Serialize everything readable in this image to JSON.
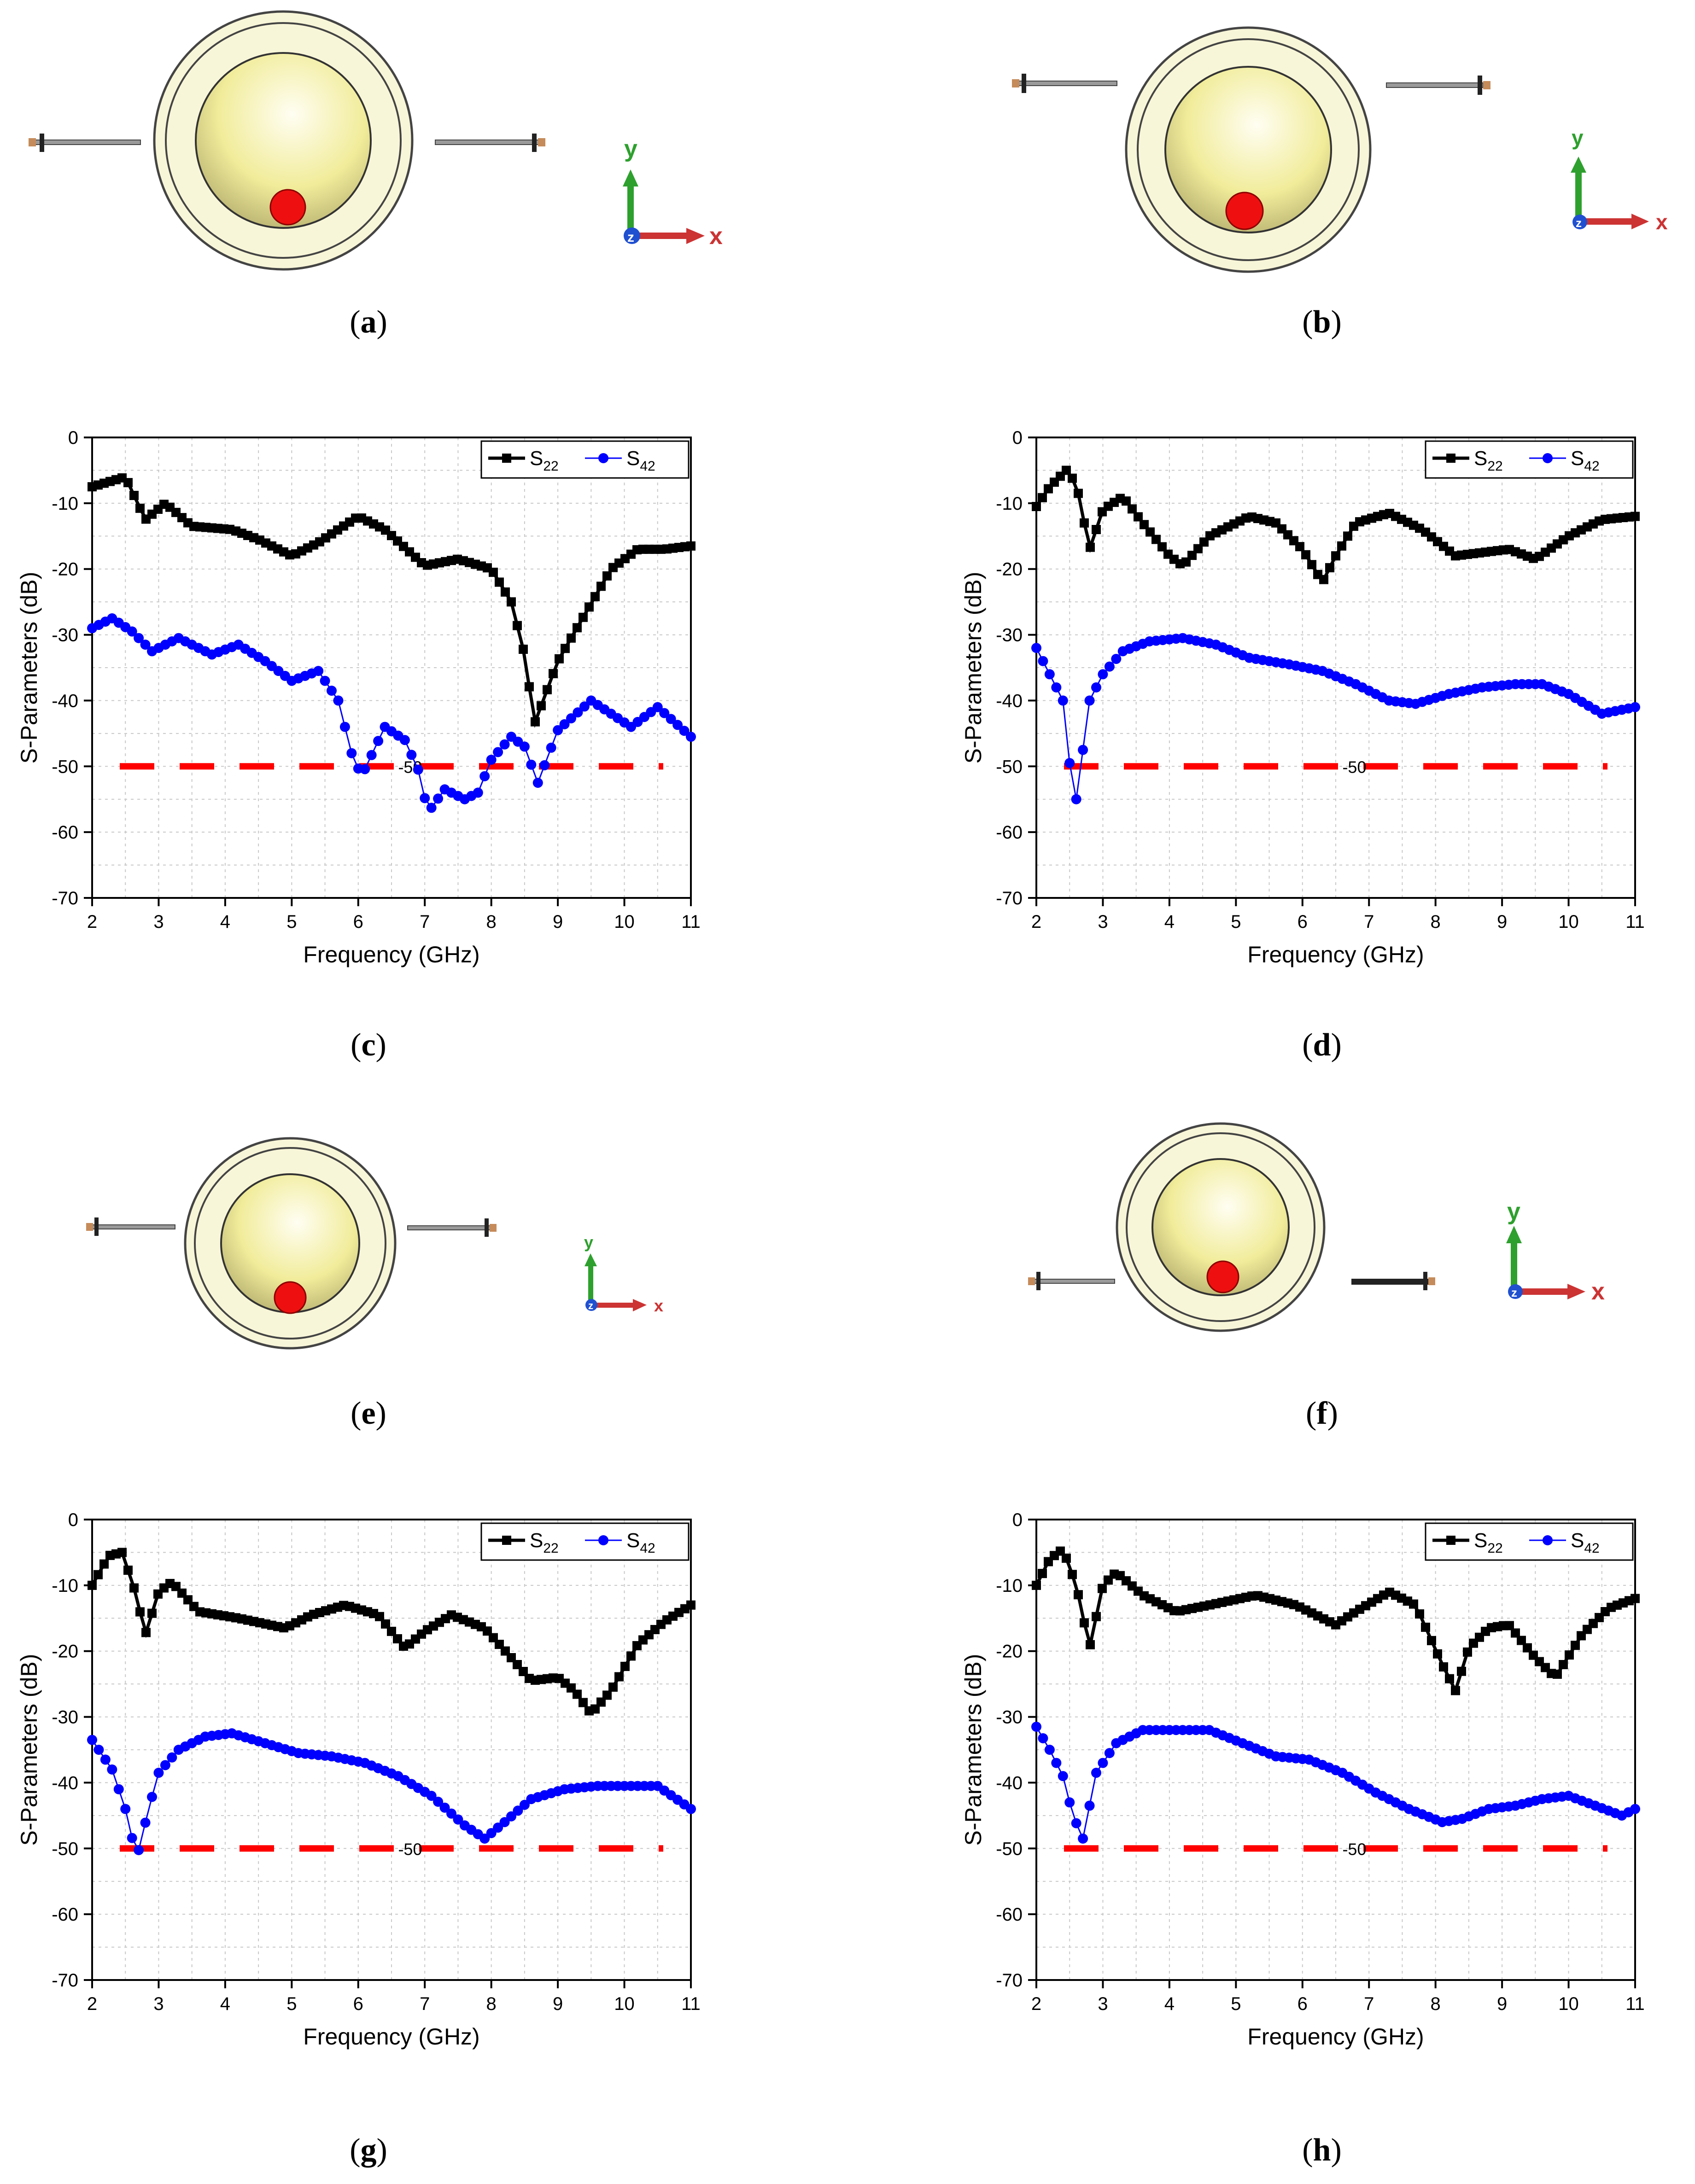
{
  "captions": {
    "a": {
      "open": "(",
      "letter": "a",
      "close": ")"
    },
    "b": {
      "open": "(",
      "letter": "b",
      "close": ")"
    },
    "c": {
      "open": "(",
      "letter": "c",
      "close": ")"
    },
    "d": {
      "open": "(",
      "letter": "d",
      "close": ")"
    },
    "e": {
      "open": "(",
      "letter": "e",
      "close": ")"
    },
    "f": {
      "open": "(",
      "letter": "f",
      "close": ")"
    },
    "g": {
      "open": "(",
      "letter": "g",
      "close": ")"
    },
    "h": {
      "open": "(",
      "letter": "h",
      "close": ")"
    }
  },
  "axis_labels": {
    "x": "x",
    "y": "y",
    "z": "z"
  },
  "colors": {
    "s22": "#000000",
    "s42": "#0000ff",
    "threshold": "#ff0000",
    "sphere_outer": "#f8f6d8",
    "sphere_inner": "#f2ee9a",
    "ball": "#ee1010",
    "axis_x": "#cc3333",
    "axis_y": "#2ea02e",
    "axis_z": "#2050d0"
  },
  "chart_data": [
    {
      "id": "c",
      "type": "line",
      "xlabel": "Frequency (GHz)",
      "ylabel": "S-Parameters (dB)",
      "xlim": [
        2,
        11
      ],
      "ylim": [
        -70,
        0
      ],
      "xticks": [
        2,
        3,
        4,
        5,
        6,
        7,
        8,
        9,
        10,
        11
      ],
      "yticks": [
        0,
        -10,
        -20,
        -30,
        -40,
        -50,
        -60,
        -70
      ],
      "threshold": -50,
      "threshold_label": "-50",
      "series": [
        {
          "name": "S",
          "sub": "22",
          "marker": "square",
          "x": [
            2,
            2.5,
            2.8,
            3.1,
            3.5,
            4.1,
            4.5,
            5,
            5.4,
            6,
            6.4,
            7,
            7.5,
            8,
            8.3,
            8.5,
            8.65,
            9,
            9.4,
            9.8,
            10.2,
            10.6,
            11
          ],
          "y": [
            -7.5,
            -6,
            -12.5,
            -10,
            -13.5,
            -14,
            -15.5,
            -18,
            -16,
            -12,
            -14,
            -19.5,
            -18.5,
            -20,
            -25,
            -33,
            -43.5,
            -34,
            -27,
            -20,
            -17,
            -17,
            -16.5
          ]
        },
        {
          "name": "S",
          "sub": "42",
          "marker": "circle",
          "x": [
            2,
            2.3,
            2.6,
            2.9,
            3.3,
            3.8,
            4.2,
            4.6,
            5,
            5.4,
            5.7,
            5.9,
            6.05,
            6.4,
            6.7,
            6.9,
            7.05,
            7.3,
            7.6,
            7.8,
            8,
            8.3,
            8.5,
            8.7,
            9,
            9.5,
            9.8,
            10.1,
            10.5,
            11
          ],
          "y": [
            -29,
            -27.5,
            -29.5,
            -32.5,
            -30.5,
            -33,
            -31.5,
            -34,
            -37,
            -35.5,
            -40,
            -48,
            -51.5,
            -44,
            -46,
            -50.5,
            -57,
            -53.5,
            -55,
            -54,
            -49,
            -45.5,
            -47,
            -52.5,
            -44.5,
            -40,
            -42,
            -44,
            -41,
            -45.5
          ]
        }
      ]
    },
    {
      "id": "d",
      "type": "line",
      "xlabel": "Frequency (GHz)",
      "ylabel": "S-Parameters (dB)",
      "xlim": [
        2,
        11
      ],
      "ylim": [
        -70,
        0
      ],
      "xticks": [
        2,
        3,
        4,
        5,
        6,
        7,
        8,
        9,
        10,
        11
      ],
      "yticks": [
        0,
        -10,
        -20,
        -30,
        -40,
        -50,
        -60,
        -70
      ],
      "threshold": -50,
      "threshold_label": "-50",
      "series": [
        {
          "name": "S",
          "sub": "22",
          "marker": "square",
          "x": [
            2,
            2.2,
            2.45,
            2.6,
            2.8,
            3.0,
            3.3,
            3.6,
            4.0,
            4.2,
            4.6,
            5.2,
            5.6,
            6.0,
            6.3,
            6.5,
            6.8,
            7.3,
            7.8,
            8.3,
            8.7,
            9.1,
            9.5,
            10.0,
            10.5,
            11
          ],
          "y": [
            -10.5,
            -7.5,
            -5,
            -7,
            -17,
            -11,
            -9,
            -13,
            -18,
            -19.5,
            -15,
            -12,
            -13,
            -17,
            -22,
            -18,
            -13,
            -11.5,
            -14,
            -18,
            -17.5,
            -17,
            -18.5,
            -15,
            -12.5,
            -12
          ]
        },
        {
          "name": "S",
          "sub": "42",
          "marker": "circle",
          "x": [
            2,
            2.2,
            2.4,
            2.5,
            2.6,
            2.7,
            2.8,
            3.0,
            3.3,
            3.7,
            4.2,
            4.7,
            5.2,
            5.8,
            6.3,
            6.8,
            7.3,
            7.7,
            8.2,
            8.7,
            9.2,
            9.6,
            10.0,
            10.5,
            11
          ],
          "y": [
            -32,
            -36,
            -40,
            -49.5,
            -55,
            -47.5,
            -40,
            -36,
            -32.5,
            -31,
            -30.5,
            -31.5,
            -33.5,
            -34.5,
            -35.5,
            -37.5,
            -40,
            -40.5,
            -39,
            -38,
            -37.5,
            -37.5,
            -39,
            -42,
            -41
          ]
        }
      ]
    },
    {
      "id": "g",
      "type": "line",
      "xlabel": "Frequency (GHz)",
      "ylabel": "S-Parameters (dB)",
      "xlim": [
        2,
        11
      ],
      "ylim": [
        -70,
        0
      ],
      "xticks": [
        2,
        3,
        4,
        5,
        6,
        7,
        8,
        9,
        10,
        11
      ],
      "yticks": [
        0,
        -10,
        -20,
        -30,
        -40,
        -50,
        -60,
        -70
      ],
      "threshold": -50,
      "threshold_label": "-50",
      "series": [
        {
          "name": "S",
          "sub": "22",
          "marker": "square",
          "x": [
            2,
            2.25,
            2.45,
            2.65,
            2.8,
            3.0,
            3.2,
            3.6,
            4.2,
            4.9,
            5.3,
            5.8,
            6.3,
            6.7,
            7.0,
            7.4,
            7.9,
            8.3,
            8.6,
            9.0,
            9.25,
            9.5,
            9.8,
            10.2,
            10.6,
            11
          ],
          "y": [
            -10,
            -5.5,
            -5,
            -11,
            -17.5,
            -11,
            -9.5,
            -14,
            -15,
            -16.5,
            -14.5,
            -13,
            -14.5,
            -19.5,
            -17,
            -14.5,
            -16.5,
            -21,
            -24.5,
            -24,
            -26,
            -29.5,
            -26,
            -19,
            -15.5,
            -13
          ]
        },
        {
          "name": "S",
          "sub": "42",
          "marker": "circle",
          "x": [
            2,
            2.3,
            2.5,
            2.67,
            2.85,
            3.0,
            3.3,
            3.7,
            4.1,
            4.6,
            5.1,
            5.6,
            6.1,
            6.6,
            7.1,
            7.6,
            7.9,
            8.2,
            8.6,
            9.1,
            9.6,
            10.1,
            10.5,
            11
          ],
          "y": [
            -33.5,
            -38,
            -44,
            -51.5,
            -44,
            -38.5,
            -35,
            -33,
            -32.5,
            -34,
            -35.5,
            -36,
            -37,
            -39,
            -42,
            -46.5,
            -48.5,
            -46,
            -42.5,
            -41,
            -40.5,
            -40.5,
            -40.5,
            -44
          ]
        }
      ]
    },
    {
      "id": "h",
      "type": "line",
      "xlabel": "Frequency (GHz)",
      "ylabel": "S-Parameters (dB)",
      "xlim": [
        2,
        11
      ],
      "ylim": [
        -70,
        0
      ],
      "xticks": [
        2,
        3,
        4,
        5,
        6,
        7,
        8,
        9,
        10,
        11
      ],
      "yticks": [
        0,
        -10,
        -20,
        -30,
        -40,
        -50,
        -60,
        -70
      ],
      "threshold": -50,
      "threshold_label": "-50",
      "series": [
        {
          "name": "S",
          "sub": "22",
          "marker": "square",
          "x": [
            2,
            2.2,
            2.4,
            2.6,
            2.8,
            3.0,
            3.2,
            3.6,
            4.1,
            4.6,
            5.3,
            5.9,
            6.5,
            6.8,
            7.3,
            7.7,
            8.1,
            8.3,
            8.5,
            8.8,
            9.1,
            9.5,
            9.8,
            10.2,
            10.6,
            11
          ],
          "y": [
            -10,
            -6,
            -4.5,
            -10,
            -19.5,
            -10,
            -8,
            -11.5,
            -14,
            -13,
            -11.5,
            -13,
            -16,
            -14,
            -11,
            -13,
            -22,
            -26,
            -19.5,
            -16.5,
            -16,
            -21,
            -24,
            -17.5,
            -13.5,
            -12
          ]
        },
        {
          "name": "S",
          "sub": "42",
          "marker": "circle",
          "x": [
            2,
            2.2,
            2.4,
            2.55,
            2.7,
            2.9,
            3.2,
            3.6,
            4.1,
            4.6,
            5.1,
            5.6,
            6.1,
            6.6,
            7.1,
            7.6,
            8.1,
            8.4,
            8.8,
            9.2,
            9.6,
            10.0,
            10.4,
            10.8,
            11
          ],
          "y": [
            -31.5,
            -35,
            -39,
            -45,
            -48.5,
            -38.5,
            -34,
            -32,
            -32,
            -32,
            -34,
            -36,
            -36.5,
            -38.5,
            -41.5,
            -44,
            -46,
            -45.5,
            -44,
            -43.5,
            -42.5,
            -42,
            -43.5,
            -45,
            -44
          ]
        }
      ]
    }
  ]
}
